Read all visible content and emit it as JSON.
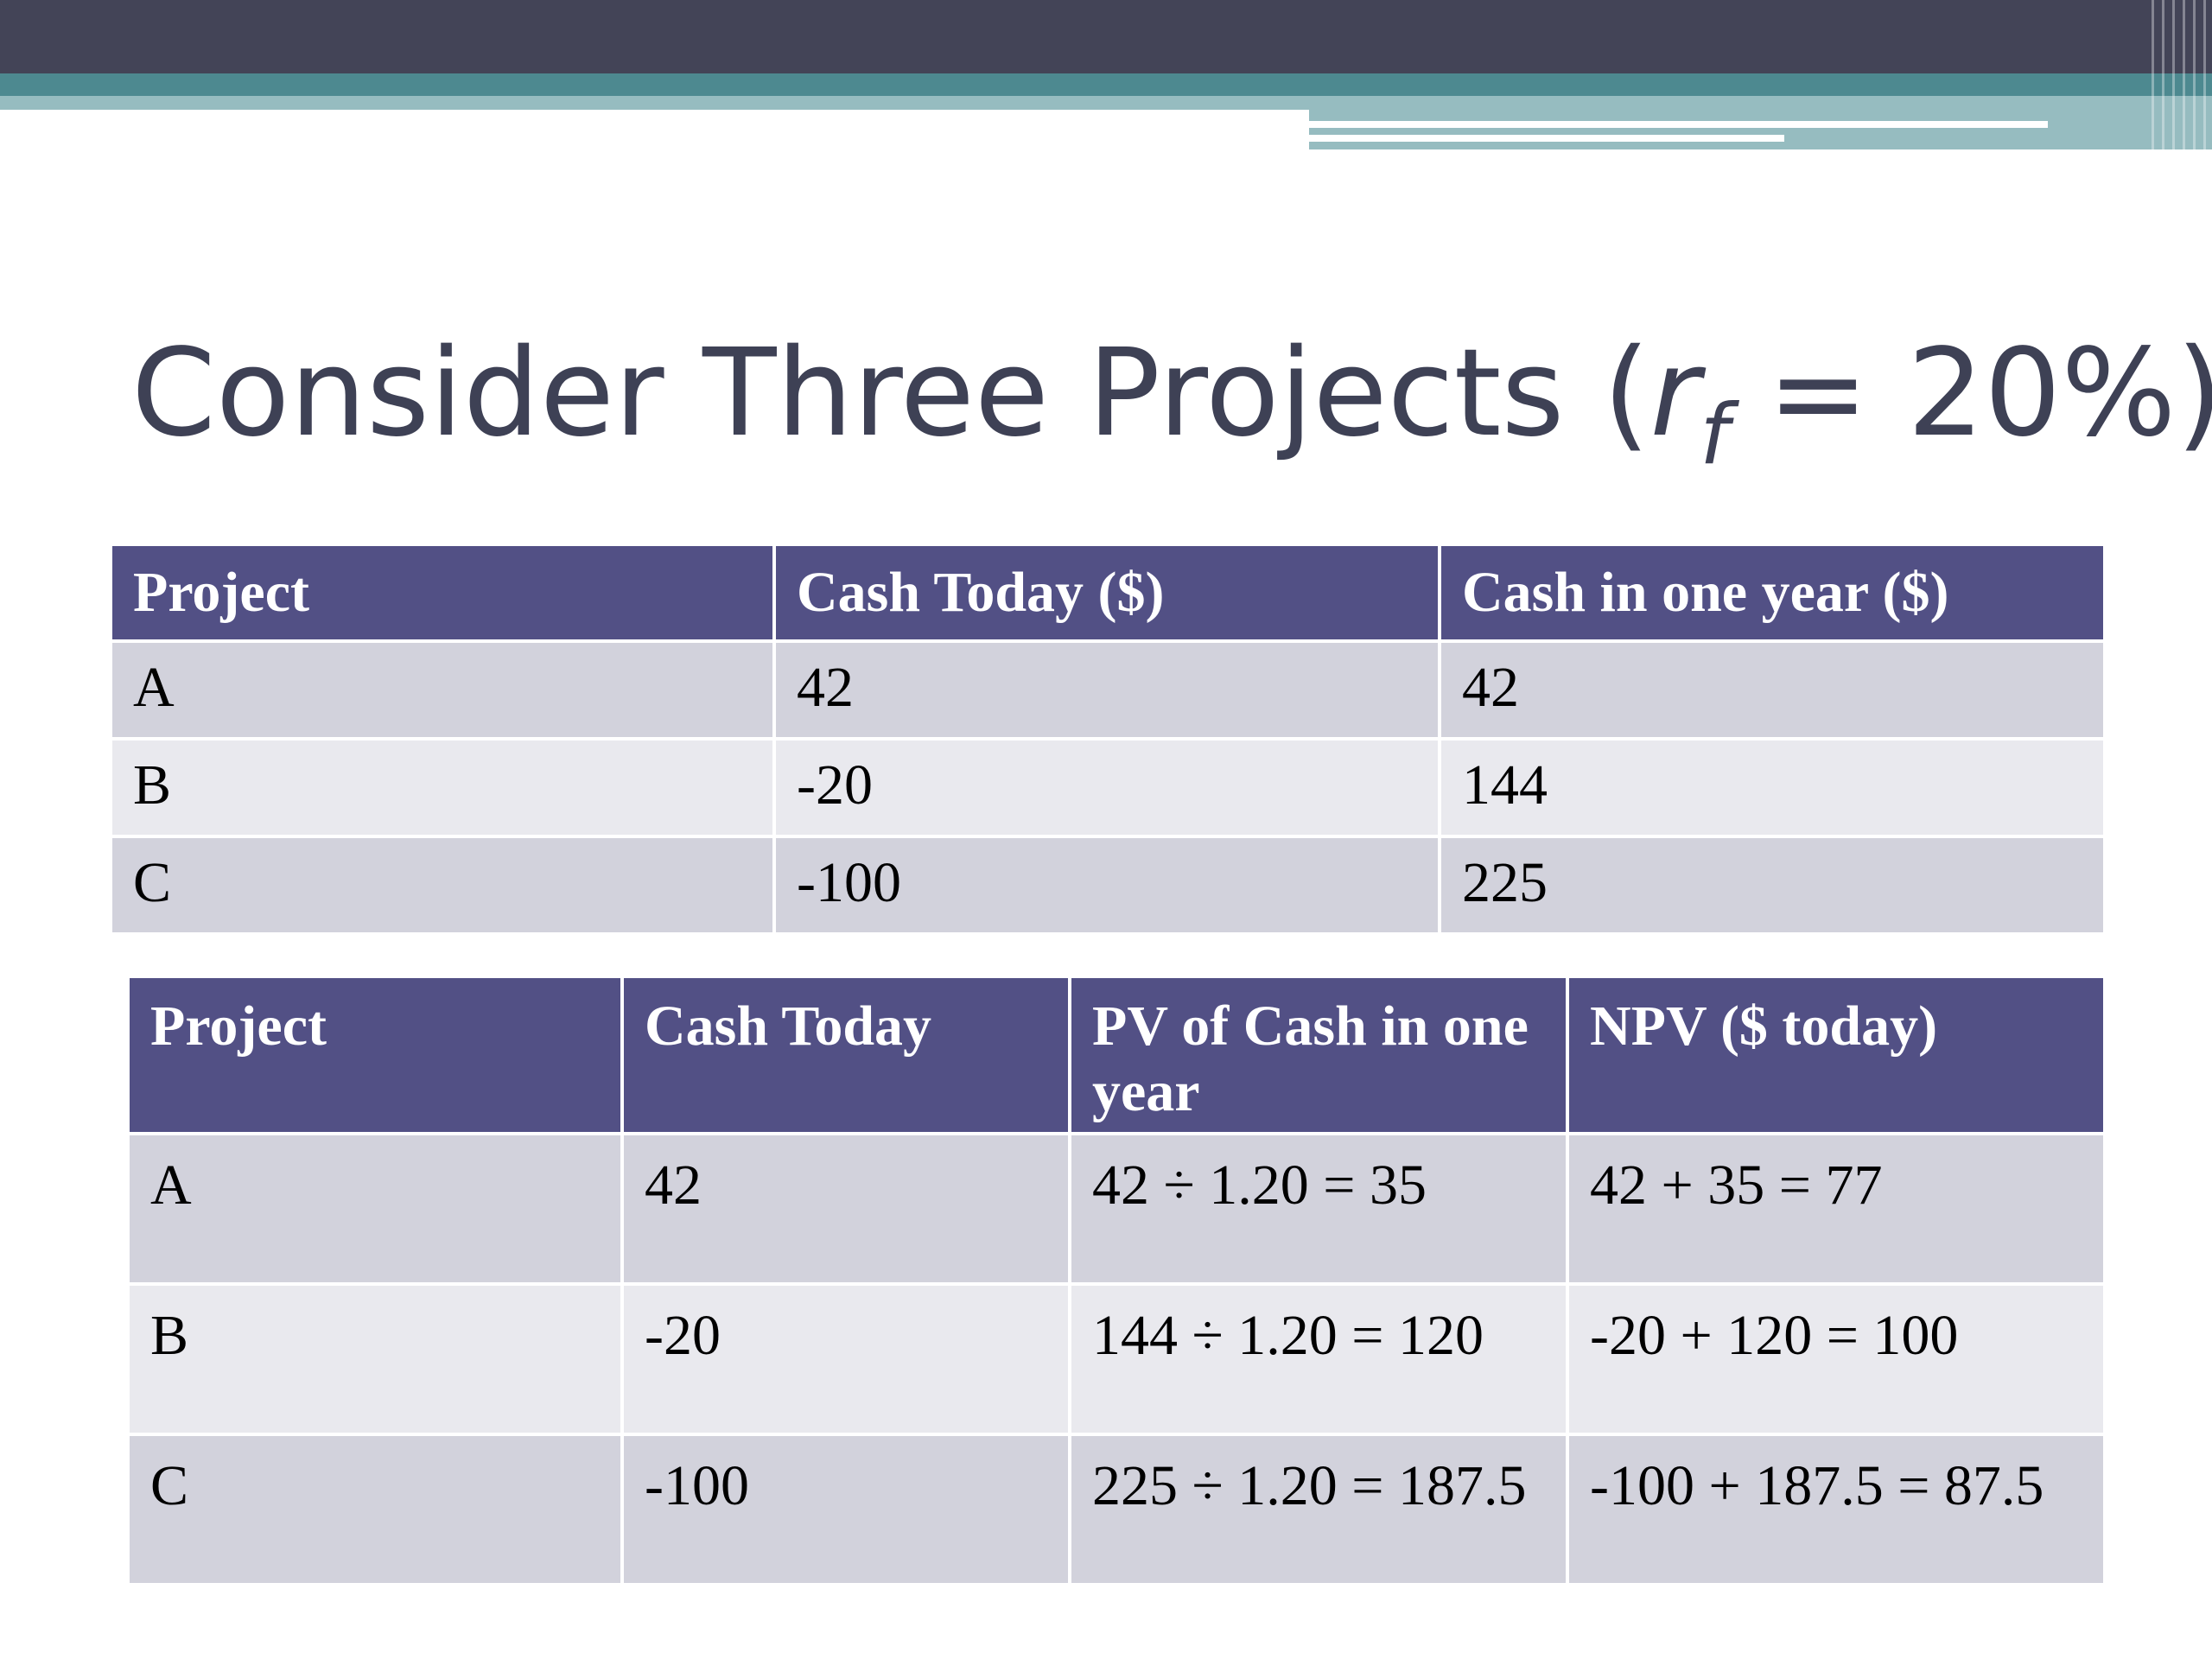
{
  "slide": {
    "title_main": "Consider Three Projects (",
    "title_r": "r",
    "title_sub": "f",
    "title_tail": " = 20%)"
  },
  "table1": {
    "headers": [
      "Project",
      "Cash Today ($)",
      "Cash in one year ($)"
    ],
    "rows": [
      [
        "A",
        "42",
        "42"
      ],
      [
        "B",
        "-20",
        "144"
      ],
      [
        "C",
        "-100",
        "225"
      ]
    ]
  },
  "table2": {
    "headers": [
      "Project",
      "Cash Today",
      "PV of Cash in one year",
      "NPV ($ today)"
    ],
    "rows": [
      [
        "A",
        "42",
        "42 ÷ 1.20 = 35",
        "42 + 35 = 77"
      ],
      [
        "B",
        "-20",
        "144 ÷ 1.20 = 120",
        "-20 + 120 = 100"
      ],
      [
        "C",
        "-100",
        "225 ÷ 1.20 = 187.5",
        "-100 + 187.5 = 87.5"
      ]
    ]
  },
  "colors": {
    "header_bg": "#525085",
    "row_dark": "#d2d2dc",
    "row_light": "#e9e9ee",
    "title": "#3e4155",
    "top_bar": "#434457",
    "accent_teal": "#4d8990"
  }
}
